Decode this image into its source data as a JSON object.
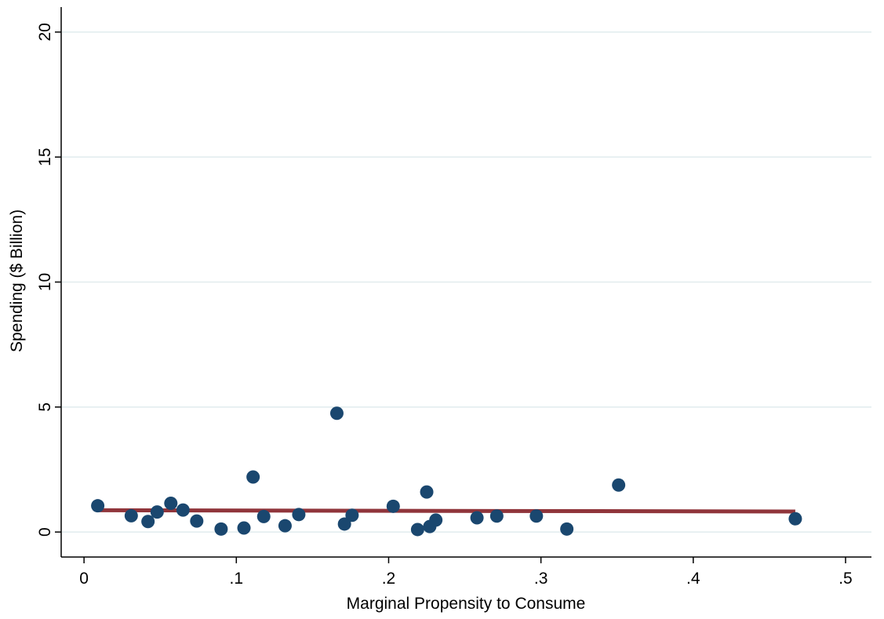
{
  "chart_data": {
    "type": "scatter",
    "title": "",
    "xlabel": "Marginal Propensity to Consume",
    "ylabel": "Spending ($ Billion)",
    "xlim": [
      -0.015,
      0.517
    ],
    "ylim": [
      -1.0,
      21.0
    ],
    "x_ticks": [
      0,
      0.1,
      0.2,
      0.3,
      0.4,
      0.5
    ],
    "x_tick_labels": [
      "0",
      ".1",
      ".2",
      ".3",
      ".4",
      ".5"
    ],
    "y_ticks": [
      0,
      5,
      10,
      15,
      20
    ],
    "y_tick_labels": [
      "0",
      "5",
      "10",
      "15",
      "20"
    ],
    "grid": "horizontal",
    "colors": {
      "points": "#1a476f",
      "fit": "#90353b",
      "grid": "#e1ecee"
    },
    "series": [
      {
        "type": "scatter",
        "points": [
          [
            0.009,
            1.05
          ],
          [
            0.031,
            0.65
          ],
          [
            0.042,
            0.42
          ],
          [
            0.048,
            0.8
          ],
          [
            0.057,
            1.15
          ],
          [
            0.065,
            0.88
          ],
          [
            0.074,
            0.44
          ],
          [
            0.09,
            0.12
          ],
          [
            0.105,
            0.16
          ],
          [
            0.111,
            2.2
          ],
          [
            0.118,
            0.62
          ],
          [
            0.132,
            0.25
          ],
          [
            0.141,
            0.7
          ],
          [
            0.166,
            4.75
          ],
          [
            0.171,
            0.32
          ],
          [
            0.176,
            0.67
          ],
          [
            0.203,
            1.03
          ],
          [
            0.219,
            0.1
          ],
          [
            0.225,
            1.6
          ],
          [
            0.227,
            0.22
          ],
          [
            0.231,
            0.48
          ],
          [
            0.258,
            0.57
          ],
          [
            0.271,
            0.64
          ],
          [
            0.297,
            0.64
          ],
          [
            0.317,
            0.12
          ],
          [
            0.351,
            1.88
          ],
          [
            0.467,
            0.53
          ]
        ]
      },
      {
        "type": "line",
        "points": [
          [
            0.009,
            0.87
          ],
          [
            0.467,
            0.82
          ]
        ]
      }
    ]
  }
}
